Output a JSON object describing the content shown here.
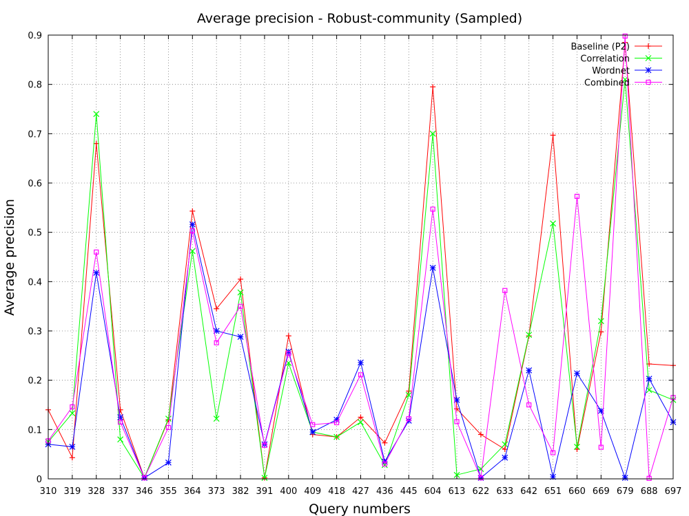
{
  "chart_data": {
    "type": "line",
    "title": "Average precision - Robust-community (Sampled)",
    "xlabel": "Query numbers",
    "ylabel": "Average precision",
    "ylim": [
      0,
      0.9
    ],
    "yticks": [
      "0",
      "0.1",
      "0.2",
      "0.3",
      "0.4",
      "0.5",
      "0.6",
      "0.7",
      "0.8",
      "0.9"
    ],
    "grid": true,
    "legend_position": "top-right",
    "categories": [
      "310",
      "319",
      "328",
      "337",
      "346",
      "355",
      "364",
      "373",
      "382",
      "391",
      "400",
      "409",
      "418",
      "427",
      "436",
      "445",
      "604",
      "613",
      "622",
      "633",
      "642",
      "651",
      "660",
      "669",
      "679",
      "688",
      "697"
    ],
    "series": [
      {
        "name": "Baseline (P2)",
        "color": "#ff0000",
        "marker": "plus",
        "values": [
          0.14,
          0.043,
          0.68,
          0.14,
          0.002,
          0.12,
          0.543,
          0.345,
          0.405,
          0.002,
          0.29,
          0.09,
          0.085,
          0.125,
          0.073,
          0.178,
          0.795,
          0.142,
          0.09,
          0.06,
          0.29,
          0.697,
          0.06,
          0.298,
          0.885,
          0.233,
          0.23
        ]
      },
      {
        "name": "Correlation",
        "color": "#00ff00",
        "marker": "x",
        "values": [
          0.075,
          0.133,
          0.74,
          0.08,
          0.002,
          0.122,
          0.462,
          0.122,
          0.378,
          0.002,
          0.235,
          0.095,
          0.085,
          0.115,
          0.028,
          0.17,
          0.7,
          0.008,
          0.02,
          0.07,
          0.292,
          0.518,
          0.065,
          0.32,
          0.81,
          0.18,
          0.16
        ]
      },
      {
        "name": "Wordnet",
        "color": "#0000ff",
        "marker": "star",
        "values": [
          0.07,
          0.065,
          0.418,
          0.125,
          0.002,
          0.033,
          0.516,
          0.3,
          0.288,
          0.07,
          0.258,
          0.095,
          0.12,
          0.236,
          0.035,
          0.118,
          0.428,
          0.16,
          0.002,
          0.043,
          0.22,
          0.004,
          0.214,
          0.138,
          0.002,
          0.203,
          0.115
        ]
      },
      {
        "name": "Combined",
        "color": "#ff00ff",
        "marker": "square",
        "values": [
          0.077,
          0.146,
          0.46,
          0.115,
          0.002,
          0.104,
          0.503,
          0.276,
          0.35,
          0.068,
          0.254,
          0.11,
          0.114,
          0.211,
          0.03,
          0.122,
          0.547,
          0.116,
          0.002,
          0.382,
          0.15,
          0.053,
          0.573,
          0.064,
          0.898,
          0.001,
          0.165
        ]
      }
    ]
  }
}
